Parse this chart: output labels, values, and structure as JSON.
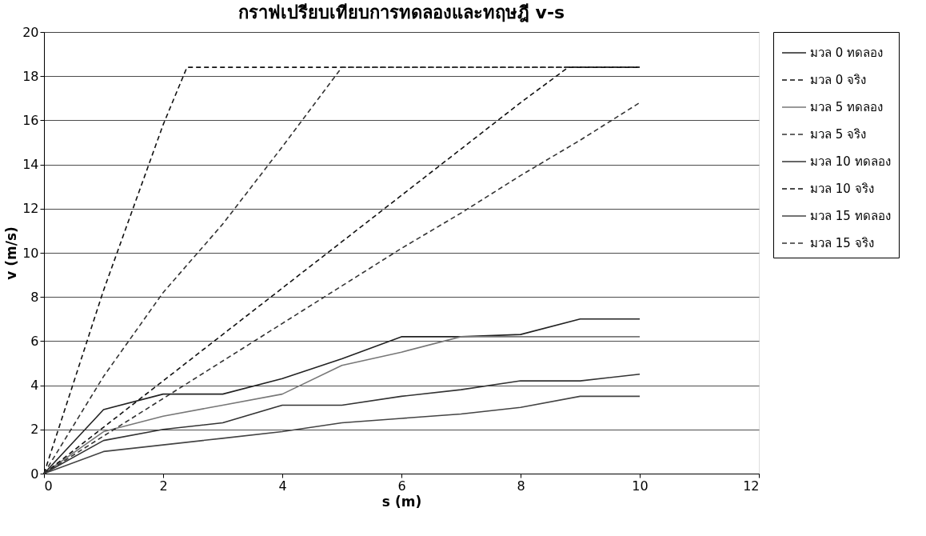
{
  "chart_data": {
    "type": "line",
    "title": "กราฟเปรียบเทียบการทดลองและทฤษฎี v-s",
    "xlabel": "s (m)",
    "ylabel": "v (m/s)",
    "xlim": [
      0,
      12
    ],
    "xticks": [
      0,
      2,
      4,
      6,
      8,
      10,
      12
    ],
    "ylim": [
      0,
      20
    ],
    "yticks": [
      0,
      2,
      4,
      6,
      8,
      10,
      12,
      14,
      16,
      18,
      20
    ],
    "grid": "y",
    "legend": "right",
    "marker": "none",
    "series": [
      {
        "name": "มวล 0 ทดลอง",
        "color": "#222222",
        "line_style": "solid",
        "x": [
          0,
          1,
          2,
          3,
          4,
          5,
          6,
          7,
          8,
          9,
          10
        ],
        "values": [
          0,
          2.9,
          3.6,
          3.6,
          4.3,
          5.2,
          6.2,
          6.2,
          6.3,
          7.0,
          7.0
        ]
      },
      {
        "name": "มวล 0 จริง",
        "color": "#111111",
        "line_style": "dashed",
        "x": [
          0,
          1,
          2,
          2.4,
          3,
          4,
          5,
          6,
          7,
          8,
          9,
          10
        ],
        "values": [
          0,
          8.3,
          15.8,
          18.4,
          18.4,
          18.4,
          18.4,
          18.4,
          18.4,
          18.4,
          18.4,
          18.4
        ]
      },
      {
        "name": "มวล 5 ทดลอง",
        "color": "#777777",
        "line_style": "solid",
        "x": [
          0,
          1,
          2,
          3,
          4,
          5,
          6,
          7,
          8,
          9,
          10
        ],
        "values": [
          0,
          1.9,
          2.6,
          3.1,
          3.6,
          4.9,
          5.5,
          6.2,
          6.2,
          6.2,
          6.2
        ]
      },
      {
        "name": "มวล 5 จริง",
        "color": "#333333",
        "line_style": "dashed",
        "x": [
          0,
          1,
          2,
          3,
          4,
          5,
          6,
          7,
          8,
          9,
          10
        ],
        "values": [
          0,
          4.4,
          8.2,
          11.3,
          14.8,
          18.4,
          18.4,
          18.4,
          18.4,
          18.4,
          18.4
        ]
      },
      {
        "name": "มวล 10 ทดลอง",
        "color": "#333333",
        "line_style": "solid",
        "x": [
          0,
          1,
          2,
          3,
          4,
          5,
          6,
          7,
          8,
          9,
          10
        ],
        "values": [
          0,
          1.5,
          2.0,
          2.3,
          3.1,
          3.1,
          3.5,
          3.8,
          4.2,
          4.2,
          4.5
        ]
      },
      {
        "name": "มวล 10 จริง",
        "color": "#111111",
        "line_style": "dashed",
        "x": [
          0,
          1,
          2,
          3,
          4,
          5,
          6,
          7,
          8,
          8.8,
          10
        ],
        "values": [
          0,
          2.1,
          4.2,
          6.3,
          8.4,
          10.5,
          12.6,
          14.7,
          16.8,
          18.4,
          18.4
        ]
      },
      {
        "name": "มวล 15 ทดลอง",
        "color": "#444444",
        "line_style": "solid",
        "x": [
          0,
          1,
          2,
          3,
          4,
          5,
          6,
          7,
          8,
          9,
          10
        ],
        "values": [
          0,
          1.0,
          1.3,
          1.6,
          1.9,
          2.3,
          2.5,
          2.7,
          3.0,
          3.5,
          3.5
        ]
      },
      {
        "name": "มวล 15 จริง",
        "color": "#333333",
        "line_style": "dashed",
        "x": [
          0,
          1,
          2,
          3,
          4,
          5,
          6,
          7,
          8,
          9,
          10
        ],
        "values": [
          0,
          1.7,
          3.4,
          5.1,
          6.8,
          8.5,
          10.2,
          11.8,
          13.5,
          15.1,
          16.8
        ]
      }
    ]
  }
}
